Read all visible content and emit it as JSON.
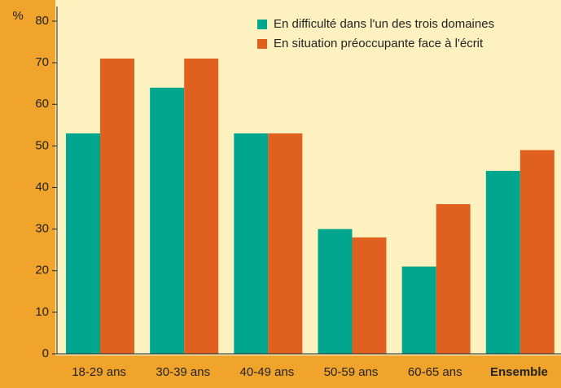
{
  "chart_data": {
    "type": "bar",
    "y_label": "%",
    "categories": [
      "18-29 ans",
      "30-39 ans",
      "40-49 ans",
      "50-59 ans",
      "60-65 ans",
      "Ensemble"
    ],
    "series": [
      {
        "name": "En difficulté dans l'un des trois domaines",
        "color": "#00a68e",
        "values": [
          53,
          64,
          53,
          30,
          21,
          44
        ]
      },
      {
        "name": "En situation préoccupante face à l'écrit",
        "color": "#e0611f",
        "values": [
          71,
          71,
          53,
          28,
          36,
          49
        ]
      }
    ],
    "ylim": [
      0,
      80
    ],
    "yticks": [
      0,
      10,
      20,
      30,
      40,
      50,
      60,
      70,
      80
    ],
    "legend": "top-right"
  }
}
